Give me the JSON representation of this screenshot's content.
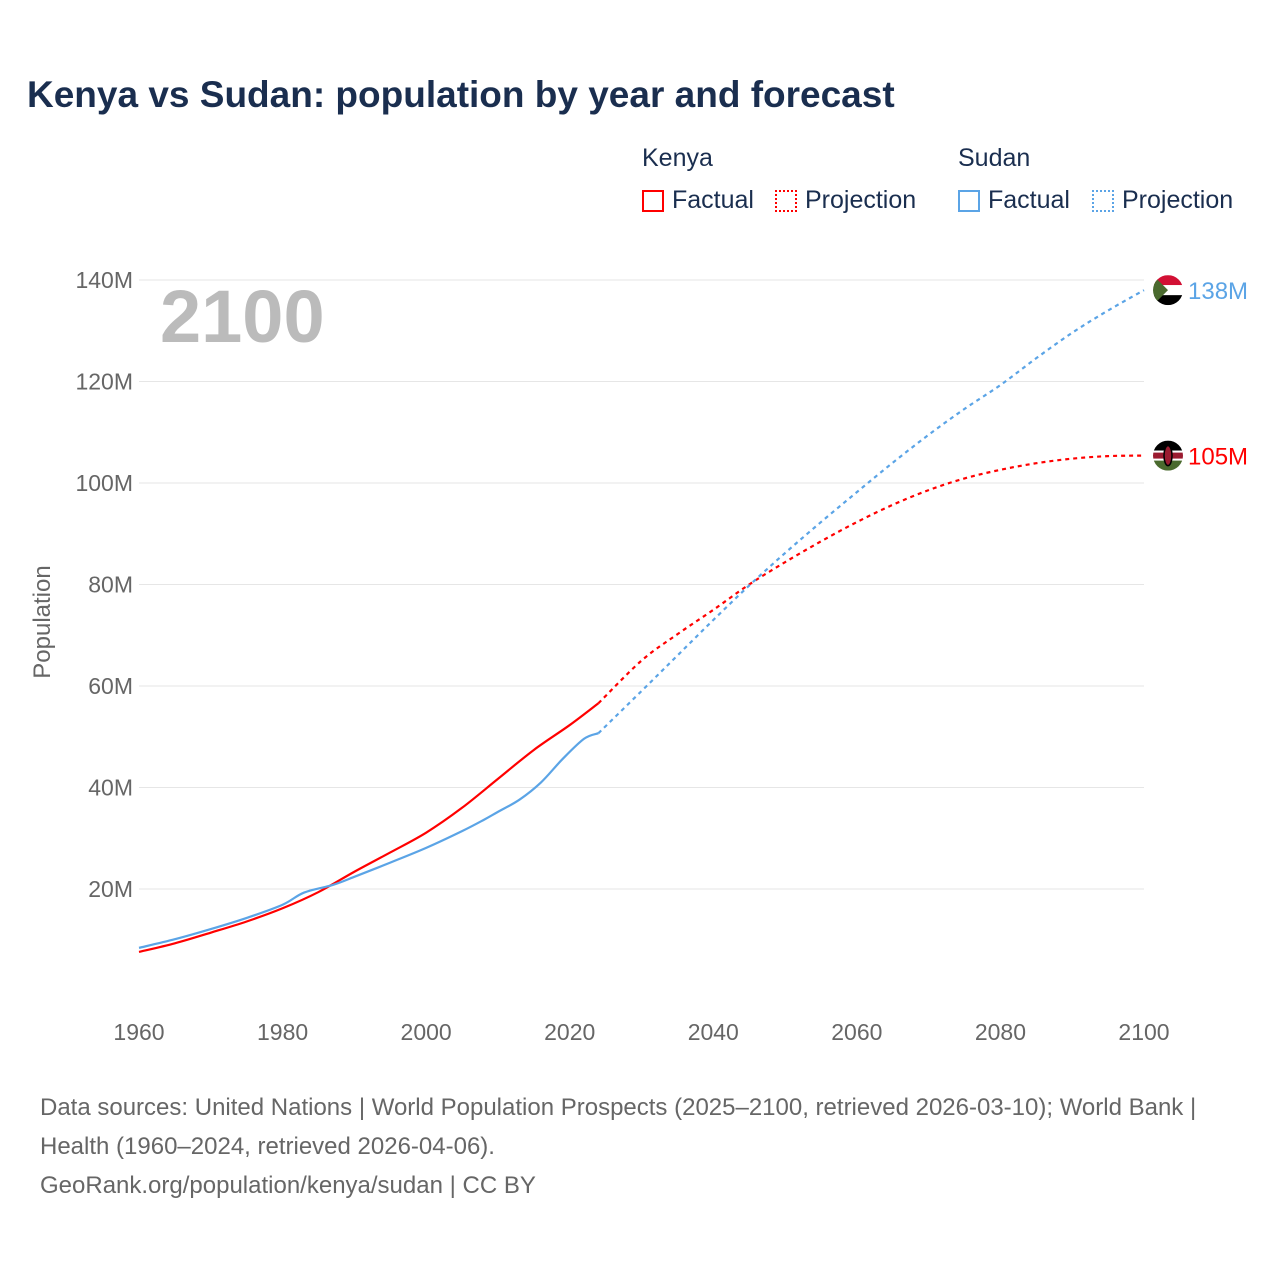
{
  "title": "Kenya vs Sudan: population by year and forecast",
  "legend": {
    "groups": [
      {
        "name": "Kenya",
        "factual": "Factual",
        "projection": "Projection",
        "color": "#ff0000"
      },
      {
        "name": "Sudan",
        "factual": "Factual",
        "projection": "Projection",
        "color": "#5ba4e6"
      }
    ]
  },
  "footer": {
    "sources": "Data sources: United Nations | World Population Prospects (2025–2100, retrieved 2026-03-10); World Bank | Health (1960–2024, retrieved 2026-04-06).",
    "credit": "GeoRank.org/population/kenya/sudan | CC BY"
  },
  "chart_data": {
    "type": "line",
    "title": "Kenya vs Sudan: population by year and forecast",
    "ylabel": "Population",
    "xlabel": "",
    "year_overlay": "2100",
    "xlim": [
      1960,
      2100
    ],
    "ylim": [
      0,
      140
    ],
    "x_ticks": [
      "1960",
      "1980",
      "2000",
      "2020",
      "2040",
      "2060",
      "2080",
      "2100"
    ],
    "y_ticks": [
      "20M",
      "40M",
      "60M",
      "80M",
      "100M",
      "120M",
      "140M"
    ],
    "grid": true,
    "series": [
      {
        "name": "Kenya",
        "color": "#ff0000",
        "end_label": "105M",
        "flag": "kenya-flag",
        "factual": [
          [
            1960,
            7.6
          ],
          [
            1965,
            9.3
          ],
          [
            1970,
            11.4
          ],
          [
            1975,
            13.6
          ],
          [
            1980,
            16.2
          ],
          [
            1985,
            19.4
          ],
          [
            1990,
            23.4
          ],
          [
            1995,
            27.2
          ],
          [
            2000,
            31.1
          ],
          [
            2005,
            36.0
          ],
          [
            2010,
            41.7
          ],
          [
            2015,
            47.4
          ],
          [
            2020,
            52.3
          ],
          [
            2024,
            56.6
          ]
        ],
        "projection": [
          [
            2024,
            56.6
          ],
          [
            2030,
            65.0
          ],
          [
            2035,
            70.2
          ],
          [
            2040,
            75.0
          ],
          [
            2045,
            80.0
          ],
          [
            2050,
            84.4
          ],
          [
            2055,
            88.5
          ],
          [
            2060,
            92.3
          ],
          [
            2065,
            95.7
          ],
          [
            2070,
            98.6
          ],
          [
            2075,
            100.9
          ],
          [
            2080,
            102.6
          ],
          [
            2085,
            103.9
          ],
          [
            2090,
            104.8
          ],
          [
            2095,
            105.3
          ],
          [
            2100,
            105.4
          ]
        ]
      },
      {
        "name": "Sudan",
        "color": "#5ba4e6",
        "end_label": "138M",
        "flag": "sudan-flag",
        "factual": [
          [
            1960,
            8.4
          ],
          [
            1965,
            10.1
          ],
          [
            1970,
            12.1
          ],
          [
            1975,
            14.3
          ],
          [
            1980,
            16.9
          ],
          [
            1983,
            19.3
          ],
          [
            1987,
            20.8
          ],
          [
            1990,
            22.4
          ],
          [
            1995,
            25.2
          ],
          [
            2000,
            28.1
          ],
          [
            2005,
            31.4
          ],
          [
            2008,
            33.6
          ],
          [
            2010,
            35.2
          ],
          [
            2013,
            37.6
          ],
          [
            2016,
            41.0
          ],
          [
            2019,
            45.6
          ],
          [
            2022,
            49.6
          ],
          [
            2024,
            50.7
          ]
        ],
        "projection": [
          [
            2024,
            50.7
          ],
          [
            2030,
            59.0
          ],
          [
            2035,
            66.0
          ],
          [
            2040,
            73.0
          ],
          [
            2045,
            79.8
          ],
          [
            2050,
            86.2
          ],
          [
            2055,
            92.3
          ],
          [
            2060,
            98.2
          ],
          [
            2065,
            104.0
          ],
          [
            2070,
            109.5
          ],
          [
            2075,
            114.6
          ],
          [
            2080,
            119.3
          ],
          [
            2085,
            124.6
          ],
          [
            2090,
            129.6
          ],
          [
            2095,
            134.0
          ],
          [
            2100,
            138.0
          ]
        ]
      }
    ]
  }
}
